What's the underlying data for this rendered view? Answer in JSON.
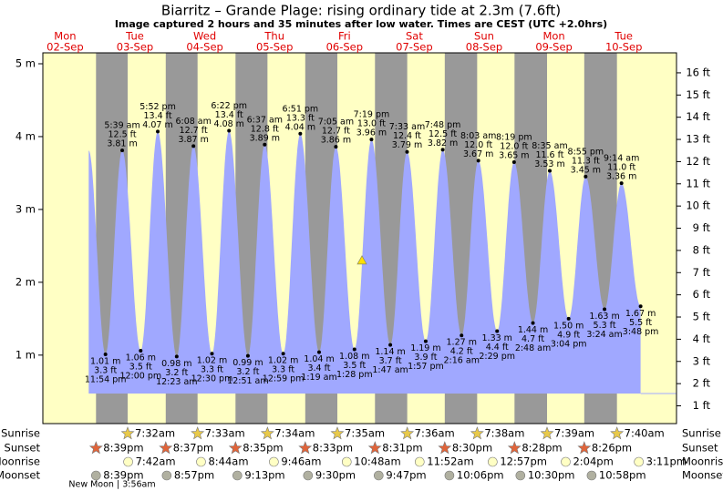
{
  "chart_data": {
    "type": "tide",
    "title": "Biarritz – Grande Plage: rising  ordinary tide at 2.3m (7.6ft)",
    "subtitle": "Image captured 2 hours and 35 minutes after low water. Times are CEST (UTC +2.0hrs)",
    "current_m": 2.3,
    "ylim": [
      0.06,
      5.15
    ],
    "yticks": [
      {
        "value": 1,
        "label": "1 m"
      },
      {
        "value": 2,
        "label": "2 m"
      },
      {
        "value": 3,
        "label": "3 m"
      },
      {
        "value": 4,
        "label": "4 m"
      },
      {
        "value": 5,
        "label": "5 m"
      }
    ],
    "y2lim": [
      0.2,
      16.9
    ],
    "y2ticks": [
      {
        "value": 1,
        "label": "1 ft"
      },
      {
        "value": 2,
        "label": "2 ft"
      },
      {
        "value": 3,
        "label": "3 ft"
      },
      {
        "value": 4,
        "label": "4 ft"
      },
      {
        "value": 5,
        "label": "5 ft"
      },
      {
        "value": 6,
        "label": "6 ft"
      },
      {
        "value": 7,
        "label": "7 ft"
      },
      {
        "value": 8,
        "label": "8 ft"
      },
      {
        "value": 9,
        "label": "9 ft"
      },
      {
        "value": 10,
        "label": "10 ft"
      },
      {
        "value": 11,
        "label": "11 ft"
      },
      {
        "value": 12,
        "label": "12 ft"
      },
      {
        "value": 13,
        "label": "13 ft"
      },
      {
        "value": 14,
        "label": "14 ft"
      },
      {
        "value": 15,
        "label": "15 ft"
      },
      {
        "value": 16,
        "label": "16 ft"
      }
    ],
    "rows": [
      "Sunrise",
      "Sunset",
      "Moonrise",
      "Moonset"
    ],
    "moon_phase": "New Moon | 3:56am",
    "days": [
      {
        "dow": "Mon",
        "date": "02-Sep",
        "sunset": "8:39pm",
        "moonset": "8:39pm",
        "tides": [
          {
            "time": "11:54 pm",
            "m": 1.01,
            "m_label": "1.01 m",
            "ft": 3.3,
            "ft_label": "3.3 ft"
          }
        ]
      },
      {
        "dow": "Tue",
        "date": "03-Sep",
        "sunrise": "7:32am",
        "sunset": "8:37pm",
        "moonrise": "7:42am",
        "moonset": "8:57pm",
        "tides": [
          {
            "time": "5:39 am",
            "m": 3.81,
            "m_label": "3.81 m",
            "ft": 12.5,
            "ft_label": "12.5 ft"
          },
          {
            "time": "12:00 pm",
            "m": 1.06,
            "m_label": "1.06 m",
            "ft": 3.5,
            "ft_label": "3.5 ft"
          },
          {
            "time": "5:52 pm",
            "m": 4.07,
            "m_label": "4.07 m",
            "ft": 13.4,
            "ft_label": "13.4 ft"
          }
        ]
      },
      {
        "dow": "Wed",
        "date": "04-Sep",
        "sunrise": "7:33am",
        "sunset": "8:35pm",
        "moonrise": "8:44am",
        "moonset": "9:13pm",
        "tides": [
          {
            "time": "12:23 am",
            "m": 0.98,
            "m_label": "0.98 m",
            "ft": 3.2,
            "ft_label": "3.2 ft"
          },
          {
            "time": "6:08 am",
            "m": 3.87,
            "m_label": "3.87 m",
            "ft": 12.7,
            "ft_label": "12.7 ft"
          },
          {
            "time": "12:30 pm",
            "m": 1.02,
            "m_label": "1.02 m",
            "ft": 3.3,
            "ft_label": "3.3 ft"
          },
          {
            "time": "6:22 pm",
            "m": 4.08,
            "m_label": "4.08 m",
            "ft": 13.4,
            "ft_label": "13.4 ft"
          }
        ]
      },
      {
        "dow": "Thu",
        "date": "05-Sep",
        "sunrise": "7:34am",
        "sunset": "8:33pm",
        "moonrise": "9:46am",
        "moonset": "9:30pm",
        "tides": [
          {
            "time": "12:51 am",
            "m": 0.99,
            "m_label": "0.99 m",
            "ft": 3.2,
            "ft_label": "3.2 ft"
          },
          {
            "time": "6:37 am",
            "m": 3.89,
            "m_label": "3.89 m",
            "ft": 12.8,
            "ft_label": "12.8 ft"
          },
          {
            "time": "12:59 pm",
            "m": 1.02,
            "m_label": "1.02 m",
            "ft": 3.3,
            "ft_label": "3.3 ft"
          },
          {
            "time": "6:51 pm",
            "m": 4.04,
            "m_label": "4.04 m",
            "ft": 13.3,
            "ft_label": "13.3 ft"
          }
        ]
      },
      {
        "dow": "Fri",
        "date": "06-Sep",
        "sunrise": "7:35am",
        "sunset": "8:31pm",
        "moonrise": "10:48am",
        "moonset": "9:47pm",
        "tides": [
          {
            "time": "1:19 am",
            "m": 1.04,
            "m_label": "1.04 m",
            "ft": 3.4,
            "ft_label": "3.4 ft"
          },
          {
            "time": "7:05 am",
            "m": 3.86,
            "m_label": "3.86 m",
            "ft": 12.7,
            "ft_label": "12.7 ft"
          },
          {
            "time": "1:28 pm",
            "m": 1.08,
            "m_label": "1.08 m",
            "ft": 3.5,
            "ft_label": "3.5 ft"
          },
          {
            "time": "7:19 pm",
            "m": 3.96,
            "m_label": "3.96 m",
            "ft": 13.0,
            "ft_label": "13.0 ft"
          }
        ]
      },
      {
        "dow": "Sat",
        "date": "07-Sep",
        "sunrise": "7:36am",
        "sunset": "8:30pm",
        "moonrise": "11:52am",
        "moonset": "10:06pm",
        "tides": [
          {
            "time": "1:47 am",
            "m": 1.14,
            "m_label": "1.14 m",
            "ft": 3.7,
            "ft_label": "3.7 ft"
          },
          {
            "time": "7:33 am",
            "m": 3.79,
            "m_label": "3.79 m",
            "ft": 12.4,
            "ft_label": "12.4 ft"
          },
          {
            "time": "1:57 pm",
            "m": 1.19,
            "m_label": "1.19 m",
            "ft": 3.9,
            "ft_label": "3.9 ft"
          },
          {
            "time": "7:48 pm",
            "m": 3.82,
            "m_label": "3.82 m",
            "ft": 12.5,
            "ft_label": "12.5 ft"
          }
        ]
      },
      {
        "dow": "Sun",
        "date": "08-Sep",
        "sunrise": "7:38am",
        "sunset": "8:28pm",
        "moonrise": "12:57pm",
        "moonset": "10:30pm",
        "tides": [
          {
            "time": "2:16 am",
            "m": 1.27,
            "m_label": "1.27 m",
            "ft": 4.2,
            "ft_label": "4.2 ft"
          },
          {
            "time": "8:03 am",
            "m": 3.67,
            "m_label": "3.67 m",
            "ft": 12.0,
            "ft_label": "12.0 ft"
          },
          {
            "time": "2:29 pm",
            "m": 1.33,
            "m_label": "1.33 m",
            "ft": 4.4,
            "ft_label": "4.4 ft"
          },
          {
            "time": "8:19 pm",
            "m": 3.65,
            "m_label": "3.65 m",
            "ft": 12.0,
            "ft_label": "12.0 ft"
          }
        ]
      },
      {
        "dow": "Mon",
        "date": "09-Sep",
        "sunrise": "7:39am",
        "sunset": "8:26pm",
        "moonrise": "2:04pm",
        "moonset": "10:58pm",
        "tides": [
          {
            "time": "2:48 am",
            "m": 1.44,
            "m_label": "1.44 m",
            "ft": 4.7,
            "ft_label": "4.7 ft"
          },
          {
            "time": "8:35 am",
            "m": 3.53,
            "m_label": "3.53 m",
            "ft": 11.6,
            "ft_label": "11.6 ft"
          },
          {
            "time": "3:04 pm",
            "m": 1.5,
            "m_label": "1.50 m",
            "ft": 4.9,
            "ft_label": "4.9 ft"
          },
          {
            "time": "8:55 pm",
            "m": 3.45,
            "m_label": "3.45 m",
            "ft": 11.3,
            "ft_label": "11.3 ft"
          }
        ]
      },
      {
        "dow": "Tue",
        "date": "10-Sep",
        "sunrise": "7:40am",
        "moonrise": "3:11pm",
        "tides": [
          {
            "time": "3:24 am",
            "m": 1.63,
            "m_label": "1.63 m",
            "ft": 5.3,
            "ft_label": "5.3 ft"
          },
          {
            "time": "9:14 am",
            "m": 3.36,
            "m_label": "3.36 m",
            "ft": 11.0,
            "ft_label": "11.0 ft"
          },
          {
            "time": "3:48 pm",
            "m": 1.67,
            "m_label": "1.67 m",
            "ft": 5.5,
            "ft_label": "5.5 ft"
          }
        ]
      }
    ]
  }
}
